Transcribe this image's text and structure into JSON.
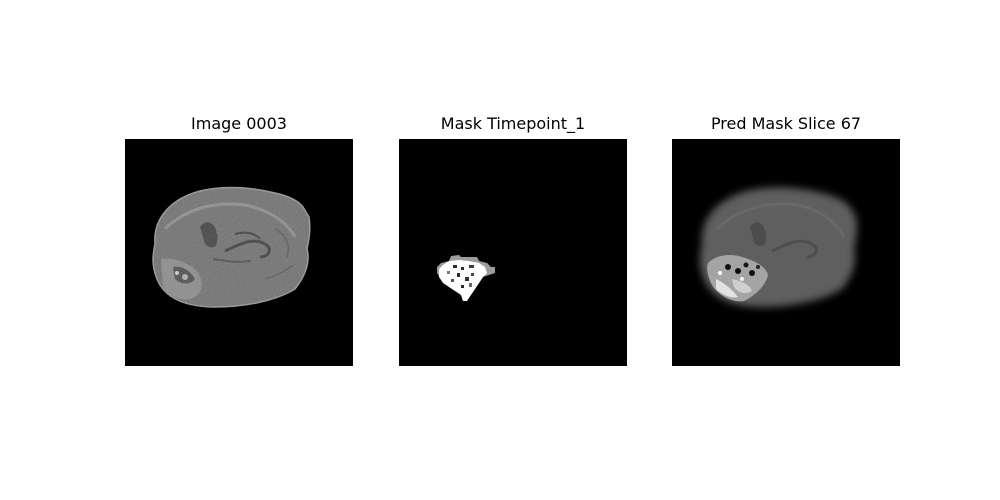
{
  "figure": {
    "panels": [
      {
        "title": "Image 0003",
        "content": "brain-mri-slice"
      },
      {
        "title": "Mask Timepoint_1",
        "content": "segmentation-mask"
      },
      {
        "title": "Pred Mask Slice 67",
        "content": "predicted-mask-overlay"
      }
    ],
    "background_color": "#000000"
  }
}
